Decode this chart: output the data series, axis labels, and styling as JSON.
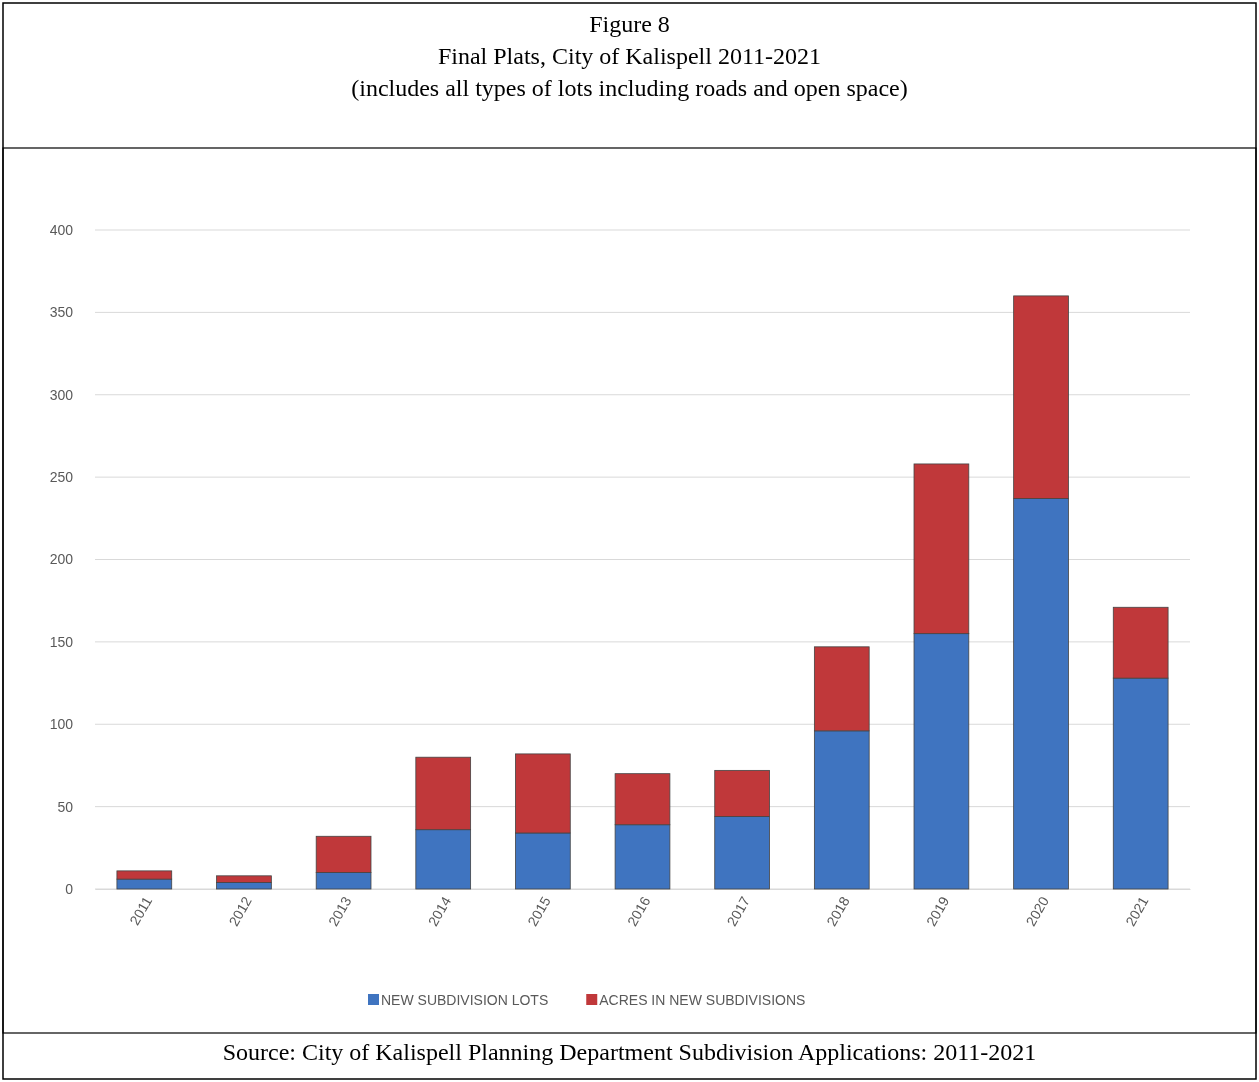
{
  "chart_data": {
    "type": "bar",
    "stacked": true,
    "title": "Figure 8",
    "subtitle": "Final Plats, City of Kalispell 2011-2021\n(includes all types of lots including roads and open space)",
    "categories": [
      "2011",
      "2012",
      "2013",
      "2014",
      "2015",
      "2016",
      "2017",
      "2018",
      "2019",
      "2020",
      "2021"
    ],
    "series": [
      {
        "name": "NEW SUBDIVISION LOTS",
        "color": "#3f74c0",
        "values": [
          6,
          4,
          10,
          36,
          34,
          39,
          44,
          96,
          155,
          237,
          128
        ]
      },
      {
        "name": "ACRES IN NEW SUBDIVISIONS",
        "color": "#c0383a",
        "values": [
          5,
          4,
          22,
          44,
          48,
          31,
          28,
          51,
          103,
          123,
          43
        ]
      }
    ],
    "ylim": [
      0,
      400
    ],
    "yticks": [
      0,
      50,
      100,
      150,
      200,
      250,
      300,
      350,
      400
    ],
    "grid": "y",
    "legend": "bottom",
    "annotations": [
      "Source: City of Kalispell Planning Department Subdivision Applications: 2011-2021"
    ]
  }
}
